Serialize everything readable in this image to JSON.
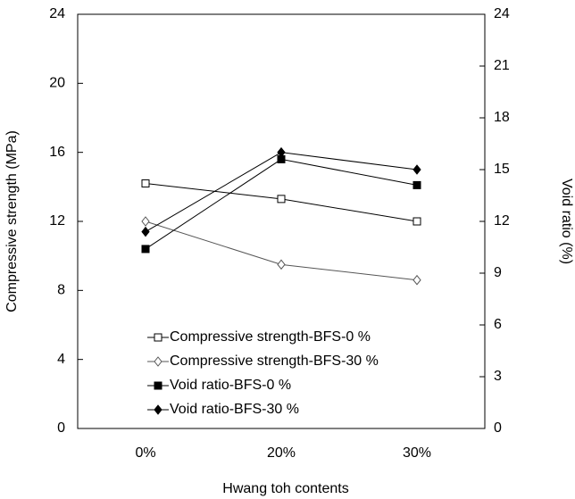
{
  "chart_data": {
    "type": "line",
    "xlabel": "Hwang toh contents",
    "ylabel": "Compressive strength (MPa)",
    "y2label": "Void ratio (%)",
    "categories": [
      "0%",
      "20%",
      "30%"
    ],
    "ylim": [
      0,
      24
    ],
    "yticks": [
      0,
      4,
      8,
      12,
      16,
      20,
      24
    ],
    "y2lim": [
      0,
      24
    ],
    "y2ticks": [
      0,
      3,
      6,
      9,
      12,
      15,
      18,
      21,
      24
    ],
    "legend": "lower-left",
    "series": [
      {
        "name": "Compressive strength-BFS-0 %",
        "color": "#000000",
        "marker": "open-square",
        "values": [
          14.2,
          13.3,
          12.0
        ]
      },
      {
        "name": "Compressive strength-BFS-30 %",
        "color": "#555555",
        "marker": "open-diamond",
        "values": [
          12.0,
          9.5,
          8.6
        ]
      },
      {
        "name": "Void ratio-BFS-0 %",
        "color": "#000000",
        "marker": "filled-square",
        "axis": "y2",
        "values": [
          10.4,
          15.6,
          14.1
        ]
      },
      {
        "name": "Void ratio-BFS-30 %",
        "color": "#000000",
        "marker": "filled-diamond",
        "axis": "y2",
        "values": [
          11.4,
          16.0,
          15.0
        ]
      }
    ]
  }
}
